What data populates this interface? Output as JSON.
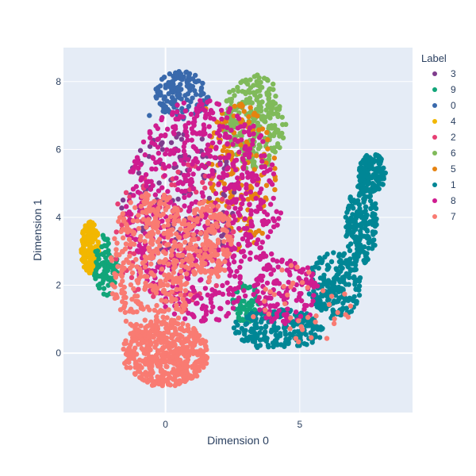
{
  "chart_data": {
    "type": "scatter",
    "title": "",
    "xlabel": "Dimension 0",
    "ylabel": "Dimension 1",
    "xlim": [
      -3.8,
      9.2
    ],
    "ylim": [
      -1.75,
      9.0
    ],
    "x_ticks": [
      0,
      5
    ],
    "y_ticks": [
      0,
      2,
      4,
      6,
      8
    ],
    "grid": true,
    "plot_background": "#e5ecf6",
    "legend": {
      "title": "Label",
      "placement": "right",
      "order": [
        "3",
        "9",
        "0",
        "4",
        "2",
        "6",
        "5",
        "1",
        "8",
        "7"
      ]
    },
    "series": [
      {
        "name": "3",
        "color": "#7f3c8d",
        "regions": [
          {
            "cx": 0.5,
            "cy": 4.5,
            "rx": 2.2,
            "ry": 2.0,
            "n": 120
          }
        ],
        "approx_points": [
          [
            0.2,
            5.1
          ],
          [
            0.9,
            4.2
          ],
          [
            -0.4,
            3.8
          ],
          [
            1.5,
            5.5
          ],
          [
            0.6,
            6.3
          ]
        ]
      },
      {
        "name": "9",
        "color": "#11a579",
        "regions": [
          {
            "cx": -2.2,
            "cy": 2.6,
            "rx": 0.5,
            "ry": 0.9,
            "n": 90
          },
          {
            "cx": 3.0,
            "cy": 1.5,
            "rx": 0.5,
            "ry": 0.6,
            "n": 60
          }
        ],
        "approx_points": [
          [
            -2.3,
            2.2
          ],
          [
            -2.1,
            2.9
          ],
          [
            2.9,
            1.3
          ]
        ]
      },
      {
        "name": "0",
        "color": "#3969ac",
        "regions": [
          {
            "cx": 0.6,
            "cy": 7.6,
            "rx": 1.0,
            "ry": 0.7,
            "n": 140
          }
        ],
        "approx_points": [
          [
            0.4,
            8.2
          ],
          [
            1.1,
            8.0
          ],
          [
            -0.6,
            7.0
          ]
        ]
      },
      {
        "name": "4",
        "color": "#f2b701",
        "regions": [
          {
            "cx": -2.8,
            "cy": 3.1,
            "rx": 0.35,
            "ry": 0.8,
            "n": 160
          }
        ],
        "approx_points": [
          [
            -2.8,
            3.0
          ],
          [
            -2.6,
            3.6
          ],
          [
            -3.0,
            2.7
          ]
        ]
      },
      {
        "name": "2",
        "color": "#e73f74",
        "regions": [
          {
            "cx": 0.3,
            "cy": 3.5,
            "rx": 2.3,
            "ry": 2.3,
            "n": 120
          }
        ],
        "approx_points": [
          [
            0.5,
            3.2
          ],
          [
            1.6,
            2.1
          ],
          [
            -0.8,
            4.4
          ]
        ]
      },
      {
        "name": "6",
        "color": "#80ba5a",
        "regions": [
          {
            "cx": 3.3,
            "cy": 6.8,
            "rx": 1.2,
            "ry": 1.4,
            "n": 260
          }
        ],
        "approx_points": [
          [
            3.4,
            8.0
          ],
          [
            4.2,
            6.5
          ],
          [
            2.8,
            7.3
          ]
        ]
      },
      {
        "name": "5",
        "color": "#e68310",
        "regions": [
          {
            "cx": 2.8,
            "cy": 5.2,
            "rx": 1.3,
            "ry": 2.2,
            "n": 160
          }
        ],
        "approx_points": [
          [
            3.0,
            6.0
          ],
          [
            2.5,
            4.4
          ],
          [
            1.5,
            7.2
          ]
        ]
      },
      {
        "name": "1",
        "color": "#008695",
        "regions": [
          {
            "cx": 4.2,
            "cy": 0.7,
            "rx": 1.7,
            "ry": 0.6,
            "n": 220
          },
          {
            "cx": 6.3,
            "cy": 2.0,
            "rx": 1.0,
            "ry": 1.0,
            "n": 200
          },
          {
            "cx": 7.3,
            "cy": 3.8,
            "rx": 0.6,
            "ry": 1.2,
            "n": 180
          },
          {
            "cx": 7.7,
            "cy": 5.3,
            "rx": 0.5,
            "ry": 0.6,
            "n": 130
          }
        ],
        "approx_points": [
          [
            4.0,
            0.3
          ],
          [
            6.5,
            2.1
          ],
          [
            7.6,
            5.5
          ],
          [
            7.3,
            4.0
          ]
        ]
      },
      {
        "name": "8",
        "color": "#cf1c90",
        "regions": [
          {
            "cx": 1.4,
            "cy": 4.2,
            "rx": 2.9,
            "ry": 3.3,
            "n": 700
          },
          {
            "cx": 4.5,
            "cy": 1.8,
            "rx": 1.2,
            "ry": 1.0,
            "n": 120
          }
        ],
        "approx_points": [
          [
            0.8,
            6.4
          ],
          [
            2.9,
            3.0
          ],
          [
            -1.0,
            2.5
          ],
          [
            4.5,
            1.8
          ]
        ]
      },
      {
        "name": "7",
        "color": "#f97b72",
        "regions": [
          {
            "cx": 0.0,
            "cy": 0.0,
            "rx": 1.6,
            "ry": 1.0,
            "n": 480
          },
          {
            "cx": -0.5,
            "cy": 2.6,
            "rx": 1.6,
            "ry": 2.2,
            "n": 380
          },
          {
            "cx": 1.6,
            "cy": 3.3,
            "rx": 0.9,
            "ry": 1.2,
            "n": 150
          },
          {
            "cx": 5.0,
            "cy": 1.4,
            "rx": 2.0,
            "ry": 1.2,
            "n": 40
          }
        ],
        "approx_points": [
          [
            0.0,
            -0.8
          ],
          [
            -0.6,
            4.3
          ],
          [
            1.7,
            3.6
          ],
          [
            -1.5,
            1.2
          ]
        ]
      }
    ]
  }
}
